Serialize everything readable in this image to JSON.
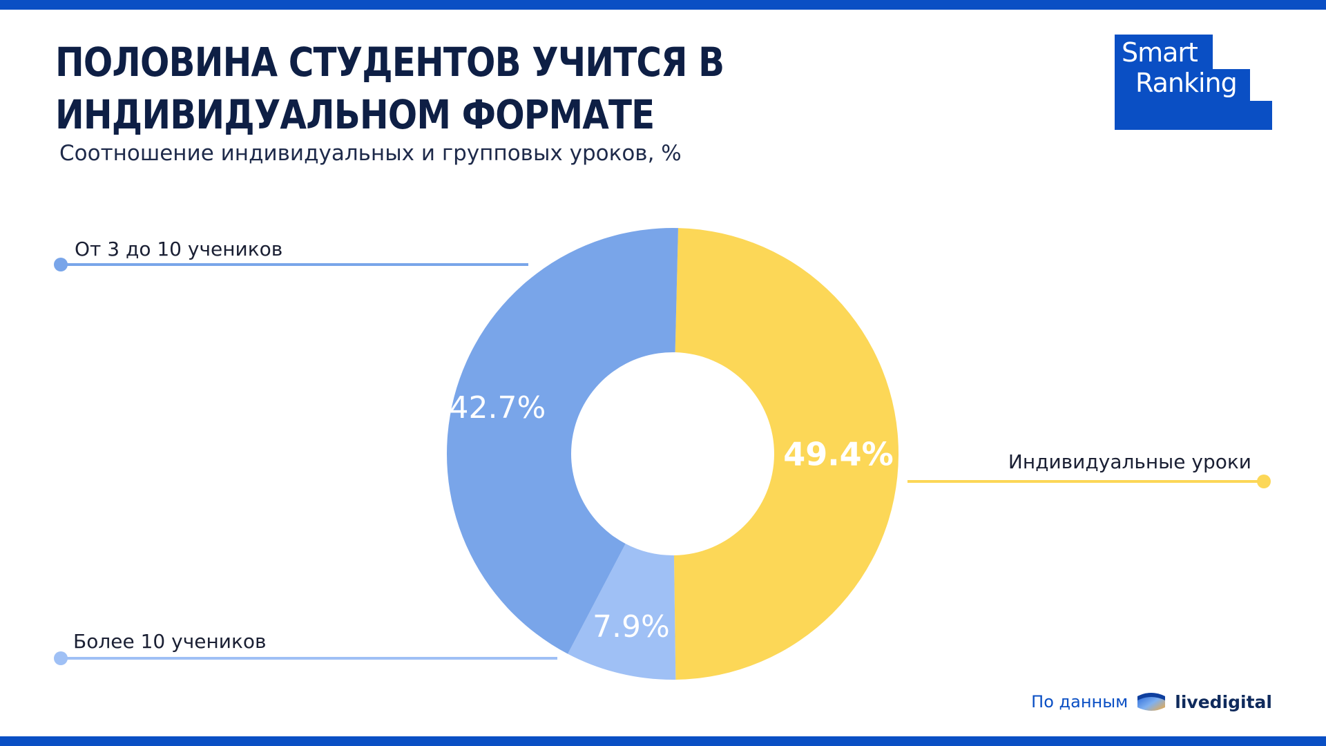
{
  "header": {
    "title": "ПОЛОВИНА СТУДЕНТОВ УЧИТСЯ В ИНДИВИДУАЛЬНОМ ФОРМАТЕ",
    "subtitle": "Соотношение индивидуальных и групповых уроков, %"
  },
  "logo": {
    "line1": "Smart",
    "line2": "Ranking",
    "color": "#0a4fc4"
  },
  "chart_data": {
    "type": "pie",
    "donut": true,
    "slices": [
      {
        "label": "Индивидуальные уроки",
        "value": 49.4,
        "display": "49.4%",
        "color": "#fcd757"
      },
      {
        "label": "Более 10 учеников",
        "value": 7.9,
        "display": "7.9%",
        "color": "#9fc0f5"
      },
      {
        "label": "От 3 до 10 учеников",
        "value": 42.7,
        "display": "42.7%",
        "color": "#79a5e9"
      }
    ]
  },
  "source": {
    "prefix": "По данным",
    "name": "livedigital",
    "icon": "livedigital-logo-icon"
  }
}
